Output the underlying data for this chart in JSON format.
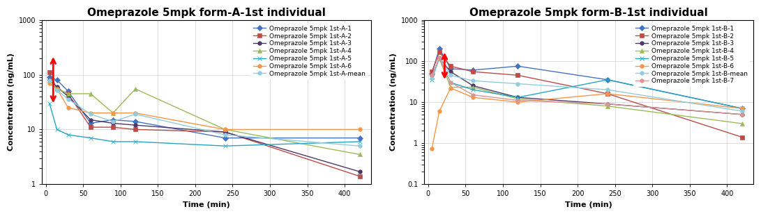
{
  "title_A": "Omeprazole 5mpk form-A-1st individual",
  "title_B": "Omeprazole 5mpk form-B-1st individual",
  "xlabel": "Time (min)",
  "ylabel": "Concentration (ng/mL)",
  "ylim_A": [
    1,
    1000
  ],
  "ylim_B": [
    0.1,
    1000
  ],
  "xlim": [
    -5,
    435
  ],
  "xticks": [
    0,
    50,
    100,
    150,
    200,
    250,
    300,
    350,
    400
  ],
  "series_A": {
    "A-1": {
      "label": "Omeprazole 5mpk 1st-A-1",
      "color": "#4472C4",
      "marker": "D",
      "markersize": 4,
      "x": [
        5,
        15,
        30,
        60,
        90,
        120,
        240,
        420
      ],
      "y": [
        90,
        80,
        50,
        13,
        15,
        14,
        7,
        7
      ]
    },
    "A-2": {
      "label": "Omeprazole 5mpk 1st-A-2",
      "color": "#BE4B48",
      "marker": "s",
      "markersize": 4,
      "x": [
        5,
        15,
        30,
        60,
        90,
        120,
        240,
        420
      ],
      "y": [
        110,
        55,
        45,
        11,
        11,
        10,
        9,
        1.4
      ]
    },
    "A-3": {
      "label": "Omeprazole 5mpk 1st-A-3",
      "color": "#4B3869",
      "marker": "o",
      "markersize": 4,
      "x": [
        5,
        15,
        30,
        60,
        90,
        120,
        240,
        420
      ],
      "y": [
        80,
        60,
        40,
        15,
        13,
        12,
        9,
        1.7
      ]
    },
    "A-4": {
      "label": "Omeprazole 5mpk 1st-A-4",
      "color": "#9BBB59",
      "marker": "^",
      "markersize": 5,
      "x": [
        5,
        15,
        30,
        60,
        90,
        120,
        240,
        420
      ],
      "y": [
        80,
        55,
        45,
        45,
        20,
        55,
        10,
        3.5
      ]
    },
    "A-5": {
      "label": "Omeprazole 5mpk 1st-A-5",
      "color": "#23A5C4",
      "marker": "x",
      "markersize": 5,
      "x": [
        5,
        15,
        30,
        60,
        90,
        120,
        240,
        420
      ],
      "y": [
        30,
        10,
        8,
        7,
        6,
        6,
        5,
        6
      ]
    },
    "A-6": {
      "label": "Omeprazole 5mpk 1st-A-6",
      "color": "#F79646",
      "marker": "o",
      "markersize": 4,
      "x": [
        5,
        15,
        30,
        60,
        90,
        120,
        240,
        420
      ],
      "y": [
        70,
        55,
        25,
        20,
        20,
        20,
        10,
        10
      ]
    },
    "A-mean": {
      "label": "Omeprazole 5mpk 1st-A-mean",
      "color": "#92CDDC",
      "marker": "o",
      "markersize": 4,
      "x": [
        5,
        15,
        30,
        60,
        90,
        120,
        240,
        420
      ],
      "y": [
        77,
        52,
        36,
        19,
        14,
        19,
        8,
        5
      ]
    }
  },
  "series_B": {
    "B-1": {
      "label": "Omeprazole 5mpk 1st-B-1",
      "color": "#4472C4",
      "marker": "D",
      "markersize": 4,
      "x": [
        5,
        15,
        30,
        60,
        120,
        240,
        420
      ],
      "y": [
        50,
        200,
        65,
        60,
        75,
        35,
        7
      ]
    },
    "B-2": {
      "label": "Omeprazole 5mpk 1st-B-2",
      "color": "#BE4B48",
      "marker": "s",
      "markersize": 4,
      "x": [
        5,
        15,
        30,
        60,
        120,
        240,
        420
      ],
      "y": [
        55,
        165,
        75,
        55,
        45,
        16,
        1.4
      ]
    },
    "B-3": {
      "label": "Omeprazole 5mpk 1st-B-3",
      "color": "#4B3869",
      "marker": "o",
      "markersize": 4,
      "x": [
        5,
        15,
        30,
        60,
        120,
        240,
        420
      ],
      "y": [
        45,
        115,
        55,
        25,
        13,
        9,
        5
      ]
    },
    "B-4": {
      "label": "Omeprazole 5mpk 1st-B-4",
      "color": "#9BBB59",
      "marker": "^",
      "markersize": 5,
      "x": [
        5,
        15,
        30,
        60,
        120,
        240,
        420
      ],
      "y": [
        40,
        115,
        23,
        23,
        12,
        8,
        3
      ]
    },
    "B-5": {
      "label": "Omeprazole 5mpk 1st-B-5",
      "color": "#23A5C4",
      "marker": "x",
      "markersize": 5,
      "x": [
        5,
        15,
        30,
        60,
        120,
        240,
        420
      ],
      "y": [
        35,
        120,
        30,
        20,
        13,
        35,
        7
      ]
    },
    "B-6": {
      "label": "Omeprazole 5mpk 1st-B-6",
      "color": "#F79646",
      "marker": "o",
      "markersize": 4,
      "x": [
        5,
        15,
        30,
        60,
        120,
        240,
        420
      ],
      "y": [
        0.75,
        6,
        22,
        13,
        10,
        16,
        7
      ]
    },
    "B-mean": {
      "label": "Omeprazole 5mpk 1st-B-mean",
      "color": "#92CDDC",
      "marker": "o",
      "markersize": 4,
      "x": [
        5,
        15,
        30,
        60,
        120,
        240,
        420
      ],
      "y": [
        37,
        120,
        45,
        33,
        28,
        20,
        6
      ]
    },
    "B-7": {
      "label": "Omeprazole 5mpk 1st-B-7",
      "color": "#D99694",
      "marker": "o",
      "markersize": 4,
      "x": [
        5,
        15,
        30,
        60,
        120,
        240,
        420
      ],
      "y": [
        45,
        120,
        30,
        15,
        11,
        9,
        5
      ]
    }
  },
  "arrow_A": {
    "x": 10,
    "y_start": 28,
    "y_end": 230,
    "color": "red"
  },
  "arrow_B": {
    "x": 22,
    "y_start": 32,
    "y_end": 180,
    "color": "red"
  },
  "background_color": "#FFFFFF",
  "grid_color": "#D0D0D0",
  "title_fontsize": 11,
  "label_fontsize": 8,
  "tick_fontsize": 7,
  "legend_fontsize": 6.5
}
